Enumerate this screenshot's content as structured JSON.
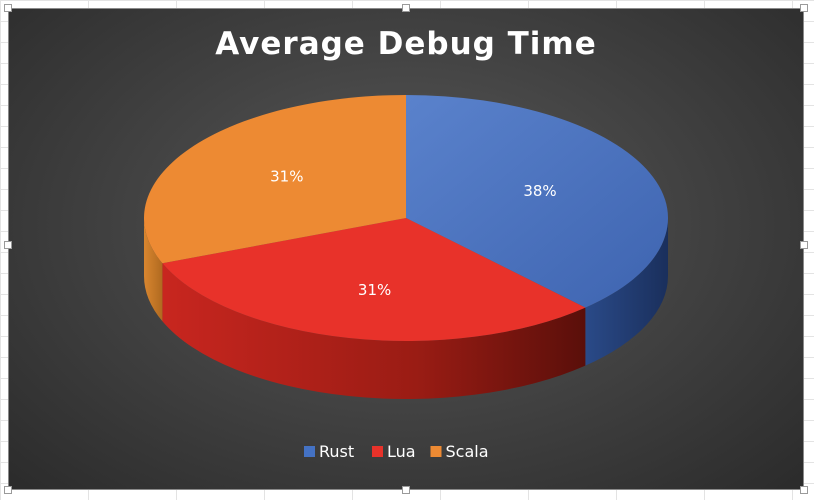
{
  "chart_data": {
    "type": "pie",
    "title": "Average Debug Time",
    "categories": [
      "Rust",
      "Lua",
      "Scala"
    ],
    "values": [
      38,
      31,
      31
    ],
    "labels": [
      "38%",
      "31%",
      "31%"
    ],
    "colors": [
      "#4472C4",
      "#E8322A",
      "#ED8A33"
    ],
    "three_d": true,
    "legend_position": "bottom"
  }
}
